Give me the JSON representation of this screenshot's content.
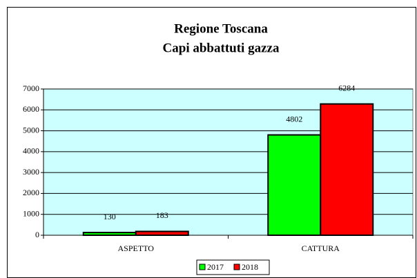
{
  "chart_data": {
    "type": "bar",
    "title": "Regione Toscana",
    "subtitle": "Capi abbattuti gazza",
    "categories": [
      "ASPETTO",
      "CATTURA"
    ],
    "series": [
      {
        "name": "2017",
        "color": "#00ff00",
        "values": [
          130,
          4802
        ]
      },
      {
        "name": "2018",
        "color": "#ff0000",
        "values": [
          183,
          6284
        ]
      }
    ],
    "ylim": [
      0,
      7000
    ],
    "yticks": [
      0,
      1000,
      2000,
      3000,
      4000,
      5000,
      6000,
      7000
    ],
    "grid": true,
    "legend": "bottom"
  }
}
